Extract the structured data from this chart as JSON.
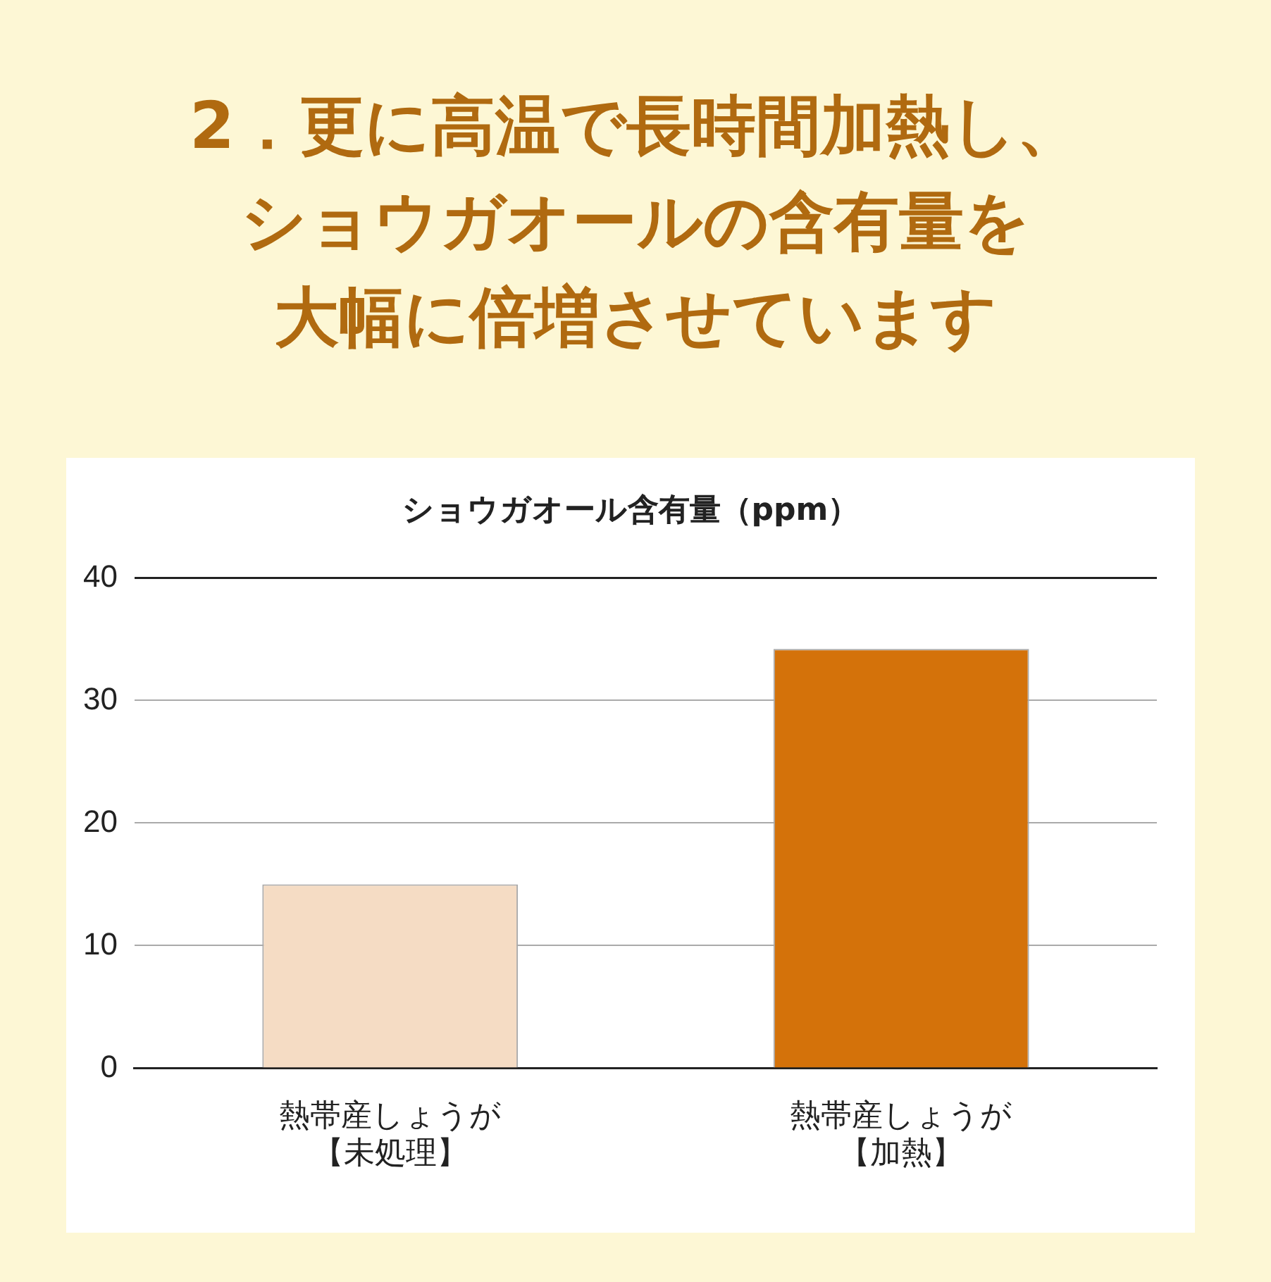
{
  "chart_data": {
    "type": "bar",
    "title": "2．更に高温で長時間加熱し、",
    "subtitle": "ショウガオールの含有量を大幅に倍増させています",
    "ylabel": "ショウガオール含有量（ppm）",
    "categories": [
      "熱帯産しょうが【未処理】",
      "熱帯産しょうが【加熱】"
    ],
    "values": [
      15,
      34.2
    ],
    "colors": [
      "#f5dcc4",
      "#d4720a"
    ],
    "ylim": [
      0,
      40
    ],
    "yticks": [
      0,
      10,
      20,
      30,
      40
    ],
    "grid": "y"
  }
}
